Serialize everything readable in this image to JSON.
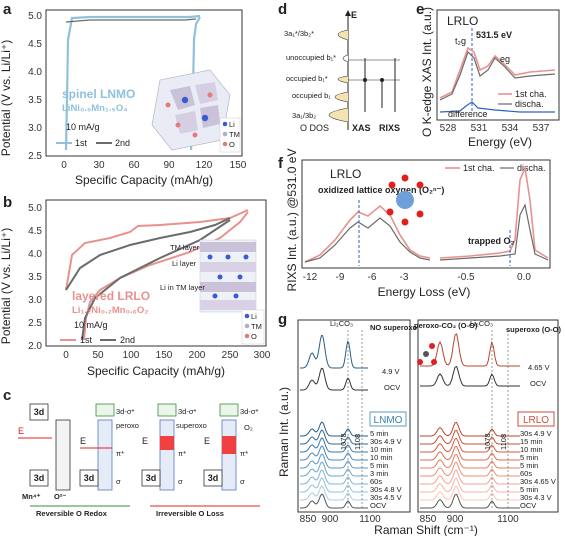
{
  "panels": {
    "a": {
      "label": "a",
      "ylabel": "Potential (V vs. Li/Li⁺)",
      "xlabel": "Specific Capacity (mAh/g)",
      "material": "spinel LNMO",
      "formula": "LiNi₀.₅Mn₁.₅O₄",
      "rate": "10 mA/g",
      "legend": [
        "1st",
        "2nd"
      ],
      "xticks": [
        "0",
        "30",
        "60",
        "90",
        "120",
        "150"
      ],
      "yticks": [
        "2.5",
        "3.0",
        "3.5",
        "4.0",
        "4.5",
        "5.0"
      ],
      "crystal_legend": [
        "Li",
        "TM",
        "O"
      ]
    },
    "b": {
      "label": "b",
      "ylabel": "Potential (V vs. Li/Li⁺)",
      "xlabel": "Specific Capacity (mAh/g)",
      "material": "layered LRLO",
      "formula": "Li₁.₂Ni₀.₂Mn₀.₆O₂",
      "rate": "10 mA/g",
      "legend": [
        "1st",
        "2nd"
      ],
      "xticks": [
        "0",
        "50",
        "100",
        "150",
        "200",
        "250",
        "300"
      ],
      "yticks": [
        "2.0",
        "2.5",
        "3.0",
        "3.5",
        "4.0",
        "4.5",
        "5.0"
      ],
      "layer_labels": [
        "TM layer",
        "Li layer",
        "Li in TM layer"
      ],
      "crystal_legend": [
        "Li",
        "TM",
        "O"
      ]
    },
    "c": {
      "label": "c",
      "boxes": [
        "3d",
        "3d",
        "3d-σ*",
        "3d",
        "3d-σ*",
        "3d",
        "3d-σ*",
        "3d"
      ],
      "labels": {
        "ef": "E",
        "ef_sub": "F",
        "mn": "Mn⁴⁺",
        "o2m": "O²⁻",
        "peroxo": "peroxo",
        "superoxo": "superoxo",
        "o2": "O₂",
        "pi": "π*",
        "sigma": "σ",
        "pi2": "π",
        "e": "e⁻",
        "reversible": "Reversible O Redox",
        "irreversible": "Irreversible O Loss"
      }
    },
    "d": {
      "label": "d",
      "levels": [
        "3a₁*/3b₂*",
        "unoccupied b₁*",
        "occupied b₁*",
        "occupied b₁",
        "3a₁/3b₂"
      ],
      "xlabels": [
        "O DOS",
        "XAS",
        "RIXS"
      ],
      "e_label": "E"
    },
    "e": {
      "label": "e",
      "title": "LRLO",
      "ylabel": "O K-edge XAS Int. (a.u.)",
      "xlabel": "Energy (eV)",
      "annotations": [
        "t₂g",
        "531.5 eV",
        "eg"
      ],
      "legend": [
        "1st cha.",
        "discha."
      ],
      "difference": "difference",
      "xticks": [
        "528",
        "531",
        "534",
        "537"
      ]
    },
    "f": {
      "label": "f",
      "title": "LRLO",
      "ylabel": "RIXS Int. (a.u.) @531.0 eV",
      "xlabel": "Energy Loss (eV)",
      "legend": [
        "1st cha.",
        "discha."
      ],
      "annotations": [
        "oxidized lattice oxygen (O₂ⁿ⁻)",
        "trapped O₂"
      ],
      "xticks": [
        "-12",
        "-9",
        "-6",
        "-3",
        "-0.5",
        "0.0"
      ]
    },
    "g": {
      "label": "g",
      "ylabel": "Raman Int. (a.u.)",
      "xlabel": "Raman Shift (cm⁻¹)",
      "left": {
        "material": "LNMO",
        "annotations": [
          "Li₂CO₃",
          "NO superoxo",
          "1078",
          "1108"
        ],
        "top_labels": [
          "4.9 V",
          "OCV"
        ],
        "rows": [
          "5 min",
          "30s 4.9 V",
          "10 min",
          "10 min",
          "5 min",
          "3 min",
          "60s",
          "30s 4.8 V",
          "30s 4.5 V",
          "OCV"
        ],
        "xticks": [
          "850",
          "900",
          "1100"
        ]
      },
      "right": {
        "material": "LRLO",
        "annotations": [
          "peroxo-CO₂ (O-O)",
          "Li₂CO₃",
          "superoxo (O-O)",
          "1078",
          "1108"
        ],
        "top_labels": [
          "4.65 V",
          "OCV"
        ],
        "rows": [
          "30s 4.9 V",
          "15 min",
          "10 min",
          "5 min",
          "5 min",
          "60s",
          "30s 4.65 V",
          "5 min",
          "30s 4.3 V",
          "OCV"
        ],
        "xticks": [
          "850",
          "900",
          "1100"
        ]
      }
    }
  },
  "colors": {
    "lnmo_1st": "#8fc1dc",
    "gray": "#6b6b6b",
    "lrlo_1st": "#e8928f",
    "blue_text": "#2d62c4",
    "red": "#e02020",
    "green": "#3a8f3a",
    "lrlo_red": "#c9503a"
  }
}
